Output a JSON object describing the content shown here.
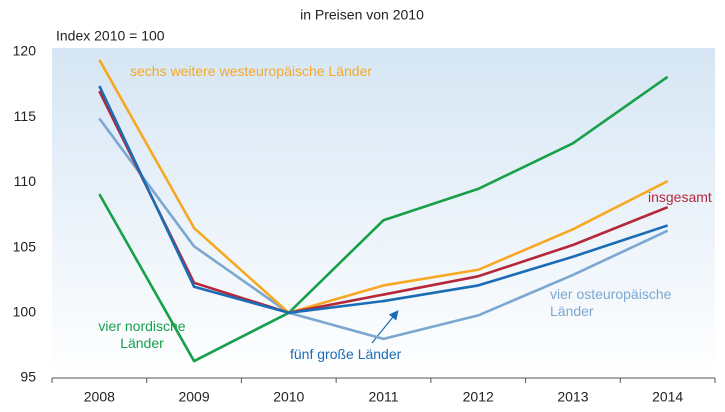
{
  "chart_data": {
    "type": "line",
    "title": "in Preisen von 2010",
    "y_label": "Index 2010 = 100",
    "categories": [
      "2008",
      "2009",
      "2010",
      "2011",
      "2012",
      "2013",
      "2014"
    ],
    "series": [
      {
        "name": "vier osteuropäische Länder",
        "color": "#7ba7d1",
        "values": [
          114.9,
          105.1,
          100,
          98.0,
          99.8,
          102.9,
          106.3
        ]
      },
      {
        "name": "vier nordische Länder",
        "color": "#17a04a",
        "values": [
          109.1,
          96.3,
          100,
          107.1,
          109.5,
          113.0,
          118.1
        ]
      },
      {
        "name": "sechs weitere westeuropäische Länder",
        "color": "#f7a823",
        "values": [
          119.4,
          106.5,
          100,
          102.1,
          103.3,
          106.4,
          110.1
        ]
      },
      {
        "name": "insgesamt",
        "color": "#b5283a",
        "values": [
          117.0,
          102.3,
          100,
          101.4,
          102.8,
          105.2,
          108.1
        ]
      },
      {
        "name": "fünf große Länder",
        "color": "#1a6cb5",
        "values": [
          117.4,
          102.0,
          100,
          100.9,
          102.1,
          104.3,
          106.7
        ]
      }
    ],
    "ylim": [
      95,
      120
    ],
    "yticks": [
      95,
      100,
      105,
      110,
      115,
      120
    ],
    "grid": false
  }
}
